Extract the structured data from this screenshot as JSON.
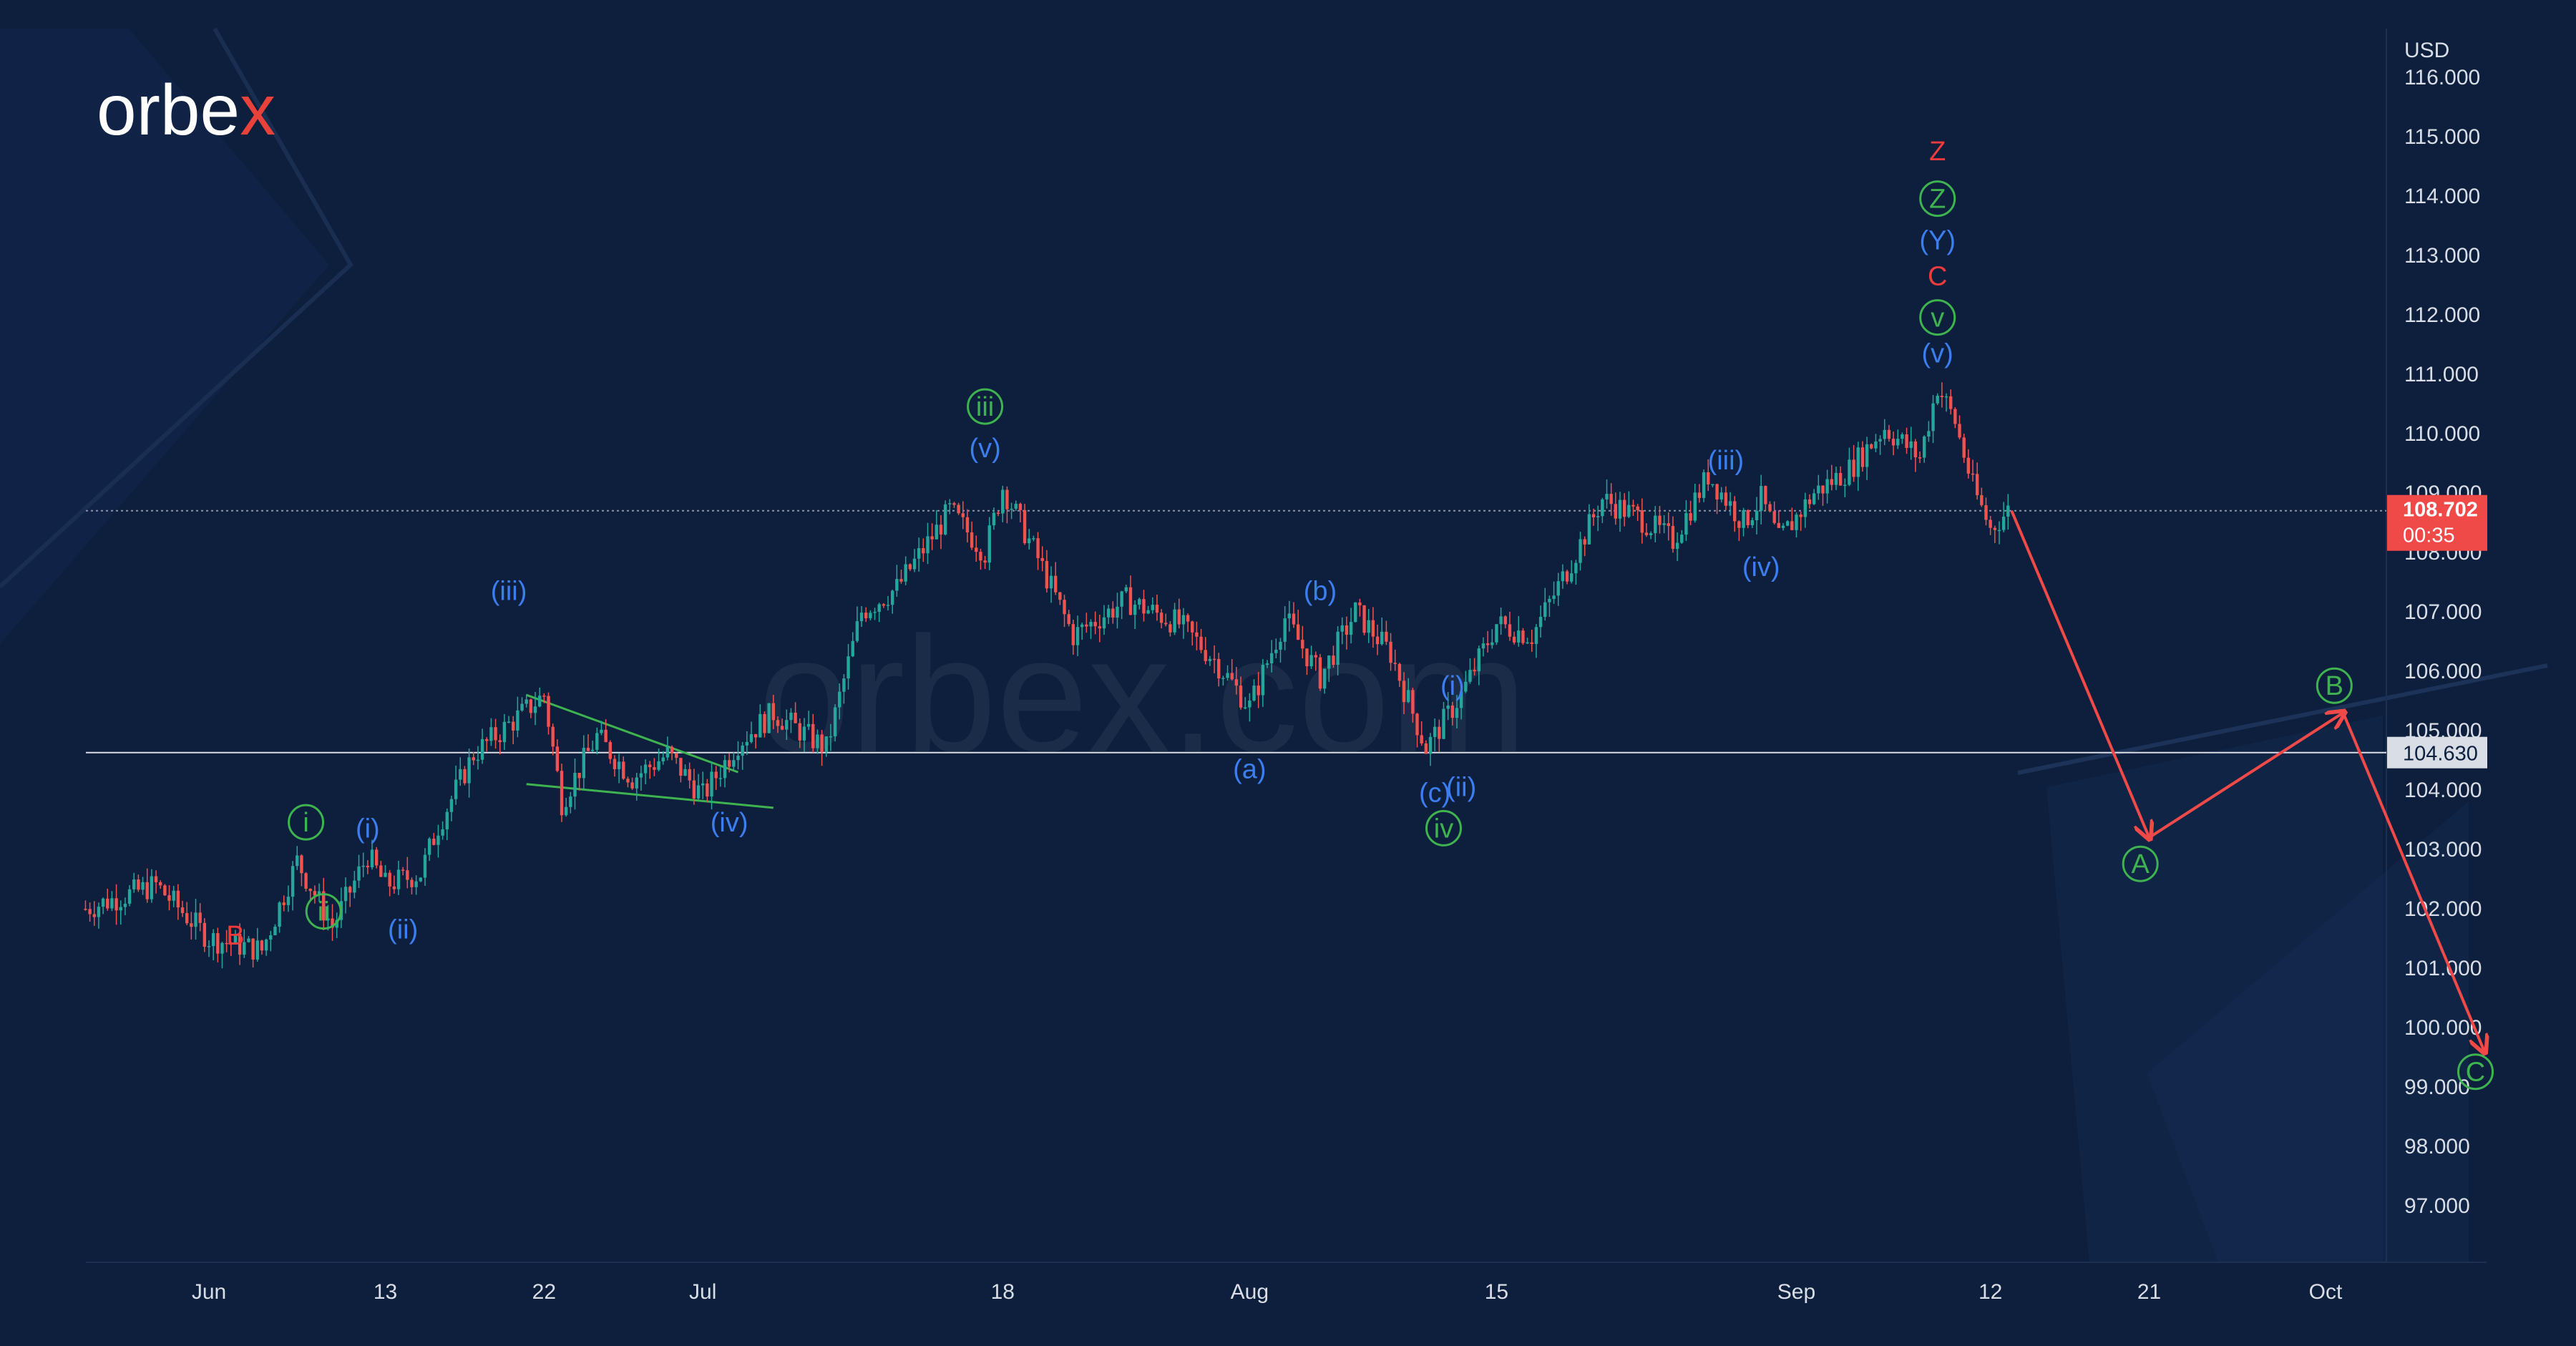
{
  "brand": {
    "logo_prefix": "orbe",
    "logo_x": "x",
    "logo_x_color": "#e8423a",
    "watermark": "orbex.com"
  },
  "colors": {
    "background": "#0d1f3c",
    "bull": "#26a69a",
    "bear": "#ef5350",
    "blue_label": "#3c7ef0",
    "green_label": "#3fb34f",
    "red_label": "#ee3b3b",
    "price_tag": "#f04a48",
    "support_tag": "#d9dde6"
  },
  "chart_data": {
    "type": "candlestick",
    "currency_label": "USD",
    "ylim": [
      96.0,
      116.2
    ],
    "x_ticks": [
      {
        "label": "Jun",
        "day": 3
      },
      {
        "label": "13",
        "day": 13
      },
      {
        "label": "22",
        "day": 22
      },
      {
        "label": "Jul",
        "day": 31
      },
      {
        "label": "18",
        "day": 48
      },
      {
        "label": "Aug",
        "day": 62
      },
      {
        "label": "15",
        "day": 76
      },
      {
        "label": "Sep",
        "day": 93
      },
      {
        "label": "12",
        "day": 104
      },
      {
        "label": "21",
        "day": 113
      },
      {
        "label": "Oct",
        "day": 123
      }
    ],
    "y_ticks": [
      "116.000",
      "115.000",
      "114.000",
      "113.000",
      "112.000",
      "111.000",
      "110.000",
      "109.000",
      "108.000",
      "107.000",
      "106.000",
      "105.000",
      "104.000",
      "103.000",
      "102.000",
      "101.000",
      "100.000",
      "99.000",
      "98.000",
      "97.000"
    ],
    "current_price": {
      "value": 108.702,
      "label": "108.702",
      "countdown": "00:35"
    },
    "support_line": {
      "value": 104.63,
      "label": "104.630"
    },
    "price_path": [
      [
        -4,
        102.0
      ],
      [
        0,
        102.4
      ],
      [
        3,
        101.5
      ],
      [
        6,
        101.3
      ],
      [
        8,
        102.8
      ],
      [
        10,
        101.7
      ],
      [
        12,
        102.9
      ],
      [
        13,
        102.4
      ],
      [
        15,
        102.6
      ],
      [
        16,
        103.4
      ],
      [
        18,
        104.6
      ],
      [
        20,
        105.1
      ],
      [
        22,
        105.6
      ],
      [
        23,
        103.8
      ],
      [
        25,
        104.9
      ],
      [
        27,
        104.2
      ],
      [
        29,
        104.6
      ],
      [
        31,
        103.9
      ],
      [
        33,
        104.8
      ],
      [
        35,
        105.3
      ],
      [
        38,
        104.7
      ],
      [
        40,
        107.0
      ],
      [
        42,
        107.4
      ],
      [
        45,
        108.7
      ],
      [
        47,
        108.0
      ],
      [
        48,
        109.1
      ],
      [
        50,
        107.9
      ],
      [
        52,
        106.6
      ],
      [
        55,
        107.2
      ],
      [
        58,
        106.8
      ],
      [
        60,
        106.2
      ],
      [
        62,
        105.4
      ],
      [
        64,
        106.9
      ],
      [
        66,
        105.9
      ],
      [
        68,
        107.0
      ],
      [
        70,
        106.3
      ],
      [
        72,
        104.7
      ],
      [
        74,
        105.6
      ],
      [
        76,
        106.8
      ],
      [
        78,
        106.6
      ],
      [
        80,
        107.7
      ],
      [
        82,
        108.9
      ],
      [
        84,
        108.6
      ],
      [
        86,
        108.2
      ],
      [
        88,
        109.3
      ],
      [
        90,
        108.5
      ],
      [
        91,
        108.9
      ],
      [
        92,
        108.2
      ],
      [
        94,
        109.0
      ],
      [
        96,
        109.4
      ],
      [
        98,
        110.1
      ],
      [
        100,
        109.6
      ],
      [
        101,
        110.8
      ],
      [
        102,
        110.2
      ],
      [
        103,
        109.1
      ],
      [
        104,
        108.4
      ],
      [
        105,
        108.7
      ]
    ],
    "projection": [
      {
        "label": "A",
        "day": 113,
        "value": 103.2
      },
      {
        "label": "B",
        "day": 124,
        "value": 105.3
      },
      {
        "label": "C",
        "day": 132,
        "value": 99.6
      }
    ],
    "triangle": {
      "upper": [
        [
          21,
          105.6
        ],
        [
          33,
          104.3
        ]
      ],
      "lower": [
        [
          21,
          104.1
        ],
        [
          35,
          103.7
        ]
      ]
    },
    "wave_labels": [
      {
        "text": "B",
        "day": 4.5,
        "value": 101.4,
        "style": "red"
      },
      {
        "text": "i",
        "day": 8.5,
        "value": 103.3,
        "style": "green-circle"
      },
      {
        "text": "ii",
        "day": 9.5,
        "value": 101.8,
        "style": "green-circle"
      },
      {
        "text": "(i)",
        "day": 12,
        "value": 103.2,
        "style": "blue"
      },
      {
        "text": "(ii)",
        "day": 14,
        "value": 101.5,
        "style": "blue"
      },
      {
        "text": "(iii)",
        "day": 20,
        "value": 107.2,
        "style": "blue"
      },
      {
        "text": "(iv)",
        "day": 32.5,
        "value": 103.3,
        "style": "blue"
      },
      {
        "text": "iii",
        "day": 47,
        "value": 110.3,
        "style": "green-circle"
      },
      {
        "text": "(v)",
        "day": 47,
        "value": 109.6,
        "style": "blue"
      },
      {
        "text": "(a)",
        "day": 62,
        "value": 104.2,
        "style": "blue"
      },
      {
        "text": "(b)",
        "day": 66,
        "value": 107.2,
        "style": "blue"
      },
      {
        "text": "(i)",
        "day": 73.5,
        "value": 105.6,
        "style": "blue"
      },
      {
        "text": "(c)",
        "day": 72.5,
        "value": 103.8,
        "style": "blue"
      },
      {
        "text": "(ii)",
        "day": 74,
        "value": 103.9,
        "style": "blue"
      },
      {
        "text": "iv",
        "day": 73,
        "value": 103.2,
        "style": "green-circle"
      },
      {
        "text": "(iii)",
        "day": 89,
        "value": 109.4,
        "style": "blue"
      },
      {
        "text": "(iv)",
        "day": 91,
        "value": 107.6,
        "style": "blue"
      },
      {
        "text": "(v)",
        "day": 101,
        "value": 111.2,
        "style": "blue"
      },
      {
        "text": "v",
        "day": 101,
        "value": 111.8,
        "style": "green-circle"
      },
      {
        "text": "C",
        "day": 101,
        "value": 112.5,
        "style": "red"
      },
      {
        "text": "(Y)",
        "day": 101,
        "value": 113.1,
        "style": "blue"
      },
      {
        "text": "Z",
        "day": 101,
        "value": 113.8,
        "style": "green-circle"
      },
      {
        "text": "Z",
        "day": 101,
        "value": 114.6,
        "style": "red"
      },
      {
        "text": "A",
        "day": 112.5,
        "value": 102.6,
        "style": "green-circle"
      },
      {
        "text": "B",
        "day": 123.5,
        "value": 105.6,
        "style": "green-circle"
      },
      {
        "text": "C",
        "day": 131.5,
        "value": 99.1,
        "style": "green-circle"
      }
    ]
  }
}
